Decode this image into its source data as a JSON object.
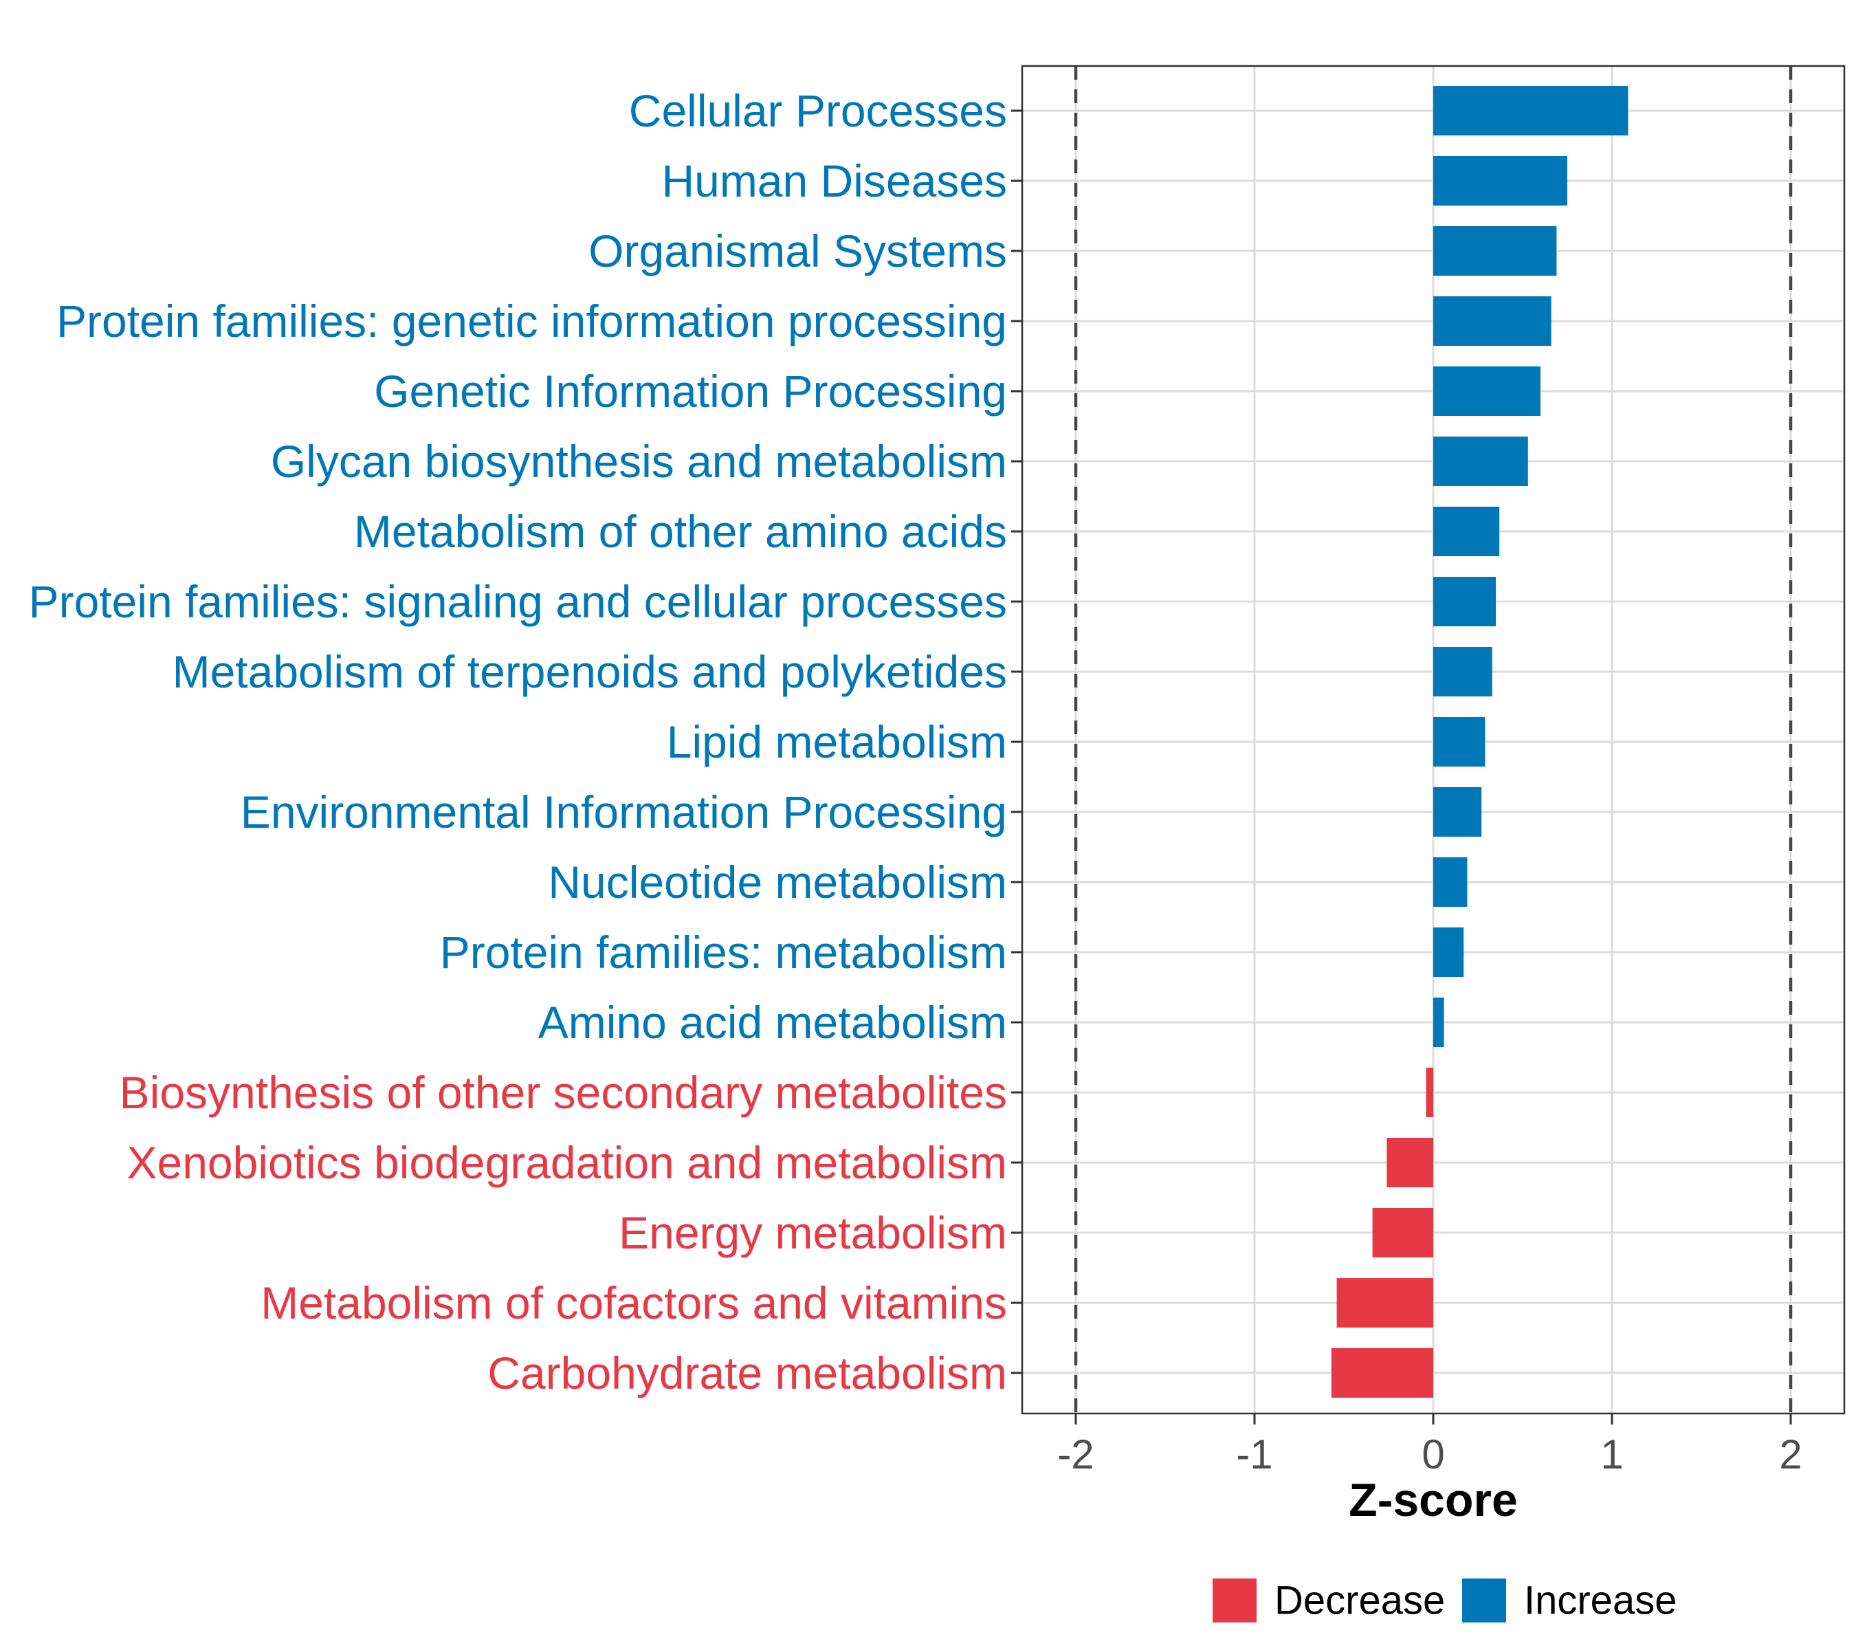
{
  "chart_data": {
    "type": "bar",
    "orientation": "horizontal",
    "title": "",
    "xlabel": "Z-score",
    "ylabel": "",
    "xlim": [
      -2.3,
      2.3
    ],
    "xticks": [
      -2,
      -1,
      0,
      1,
      2
    ],
    "xtick_labels": [
      "-2",
      "-1",
      "0",
      "1",
      "2"
    ],
    "threshold_lines": [
      -2,
      2
    ],
    "grid": true,
    "legend_position": "bottom",
    "legend": [
      {
        "label": "Decrease",
        "color": "#E63946"
      },
      {
        "label": "Increase",
        "color": "#0077B6"
      }
    ],
    "categories": [
      "Cellular Processes",
      "Human Diseases",
      "Organismal Systems",
      "Protein families: genetic information processing",
      "Genetic Information Processing",
      "Glycan biosynthesis and metabolism",
      "Metabolism of other amino acids",
      "Protein families: signaling and cellular processes",
      "Metabolism of terpenoids and polyketides",
      "Lipid metabolism",
      "Environmental Information Processing",
      "Nucleotide metabolism",
      "Protein families: metabolism",
      "Amino acid metabolism",
      "Biosynthesis of other secondary metabolites",
      "Xenobiotics biodegradation and metabolism",
      "Energy metabolism",
      "Metabolism of cofactors and vitamins",
      "Carbohydrate metabolism"
    ],
    "values": [
      1.09,
      0.75,
      0.69,
      0.66,
      0.6,
      0.53,
      0.37,
      0.35,
      0.33,
      0.29,
      0.27,
      0.19,
      0.17,
      0.06,
      -0.04,
      -0.26,
      -0.34,
      -0.54,
      -0.57
    ],
    "groups": [
      "Increase",
      "Increase",
      "Increase",
      "Increase",
      "Increase",
      "Increase",
      "Increase",
      "Increase",
      "Increase",
      "Increase",
      "Increase",
      "Increase",
      "Increase",
      "Increase",
      "Decrease",
      "Decrease",
      "Decrease",
      "Decrease",
      "Decrease"
    ]
  }
}
